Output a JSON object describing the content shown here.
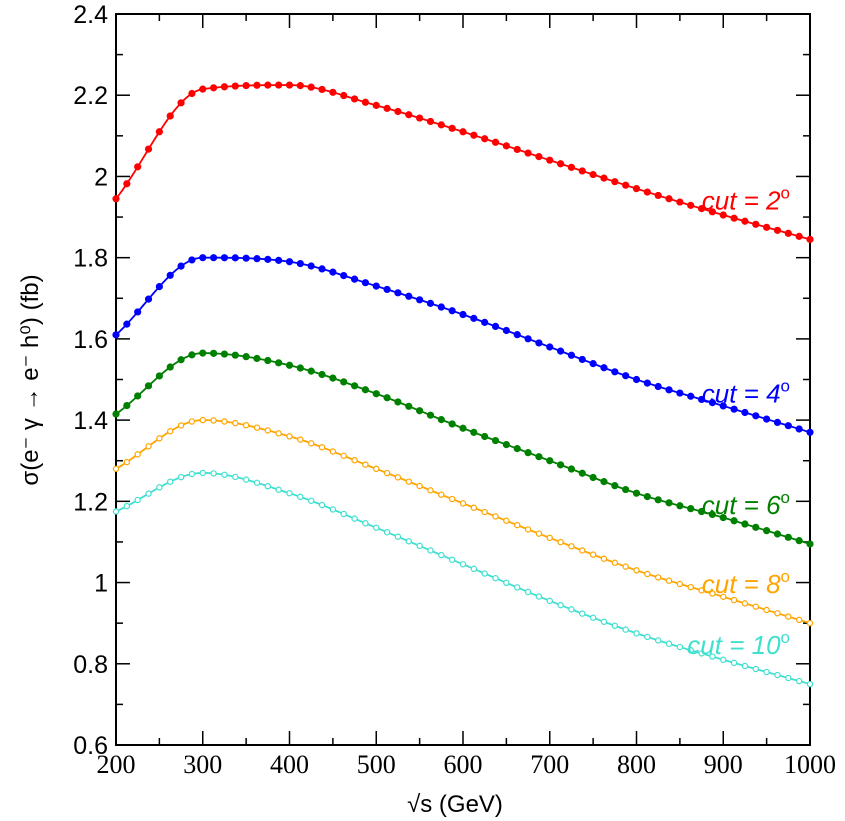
{
  "chart_data": {
    "type": "line",
    "title": "",
    "xlabel": "√s (GeV)",
    "ylabel": "σ(e⁻ γ → e⁻ h⁰) (fb)",
    "xlim": [
      200,
      1000
    ],
    "ylim": [
      0.6,
      2.4
    ],
    "xticks": [
      200,
      300,
      400,
      500,
      600,
      700,
      800,
      900,
      1000
    ],
    "xtick_labels": [
      "200",
      "300",
      "400",
      "500",
      "600",
      "700",
      "800",
      "900",
      "1000"
    ],
    "yticks": [
      0.6,
      0.8,
      1.0,
      1.2,
      1.4,
      1.6,
      1.8,
      2.0,
      2.2,
      2.4
    ],
    "ytick_labels": [
      "0.6",
      "0.8",
      "1",
      "1.2",
      "1.4",
      "1.6",
      "1.8",
      "2",
      "2.2",
      "2.4"
    ],
    "grid": false,
    "x": [
      200,
      300,
      400,
      500,
      600,
      700,
      800,
      900,
      1000
    ],
    "series": [
      {
        "name": "cut = 2°",
        "label_text": "cut = 2",
        "label_sup": "o",
        "color": "#ff0000",
        "marker": "filled",
        "values": [
          1.945,
          2.215,
          2.225,
          2.175,
          2.11,
          2.04,
          1.97,
          1.905,
          1.845
        ]
      },
      {
        "name": "cut = 4°",
        "label_text": "cut = 4",
        "label_sup": "o",
        "color": "#0000ff",
        "marker": "filled",
        "values": [
          1.61,
          1.8,
          1.79,
          1.73,
          1.66,
          1.58,
          1.5,
          1.435,
          1.37
        ]
      },
      {
        "name": "cut = 6°",
        "label_text": "cut = 6",
        "label_sup": "o",
        "color": "#008000",
        "marker": "filled",
        "values": [
          1.415,
          1.565,
          1.535,
          1.465,
          1.38,
          1.3,
          1.22,
          1.16,
          1.095
        ]
      },
      {
        "name": "cut = 8°",
        "label_text": "cut = 8",
        "label_sup": "o",
        "color": "#ffa500",
        "marker": "open",
        "values": [
          1.28,
          1.4,
          1.36,
          1.28,
          1.195,
          1.11,
          1.03,
          0.965,
          0.9
        ]
      },
      {
        "name": "cut = 10°",
        "label_text": "cut = 10",
        "label_sup": "o",
        "color": "#40e0d0",
        "marker": "open",
        "values": [
          1.175,
          1.27,
          1.22,
          1.135,
          1.045,
          0.955,
          0.875,
          0.81,
          0.75
        ]
      }
    ]
  }
}
